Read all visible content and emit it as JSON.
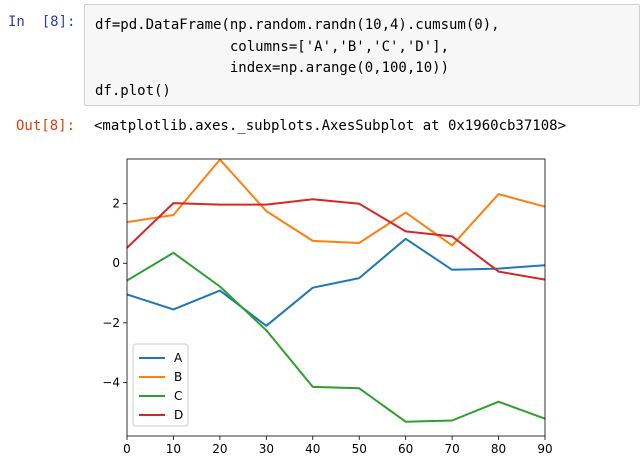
{
  "input_cell": {
    "prompt": "In  [8]:",
    "code_lines": [
      "df=pd.DataFrame(np.random.randn(10,4).cumsum(0),",
      "                columns=['A','B','C','D'],",
      "                index=np.arange(0,100,10))",
      "df.plot()"
    ]
  },
  "output_cell": {
    "prompt": "Out[8]:",
    "text": "<matplotlib.axes._subplots.AxesSubplot at 0x1960cb37108>"
  },
  "chart_data": {
    "type": "line",
    "x": [
      0,
      10,
      20,
      30,
      40,
      50,
      60,
      70,
      80,
      90
    ],
    "xticks": [
      "0",
      "10",
      "20",
      "30",
      "40",
      "50",
      "60",
      "70",
      "80",
      "90"
    ],
    "yticks": [
      2,
      0,
      -2,
      -4
    ],
    "ytick_labels": [
      "2",
      "0",
      "−2",
      "−4"
    ],
    "xlim": [
      0,
      90
    ],
    "ylim": [
      -5.8,
      3.5
    ],
    "grid": false,
    "legend_position": "lower-left",
    "series": [
      {
        "name": "A",
        "color": "#1f77b4",
        "values": [
          -1.05,
          -1.55,
          -0.92,
          -2.1,
          -0.82,
          -0.5,
          0.82,
          -0.22,
          -0.18,
          -0.07
        ]
      },
      {
        "name": "B",
        "color": "#ff7f0e",
        "values": [
          1.38,
          1.62,
          3.48,
          1.75,
          0.75,
          0.68,
          1.7,
          0.6,
          2.32,
          1.9
        ]
      },
      {
        "name": "C",
        "color": "#2ca02c",
        "values": [
          -0.58,
          0.35,
          -0.78,
          -2.25,
          -4.15,
          -4.2,
          -5.32,
          -5.28,
          -4.65,
          -5.22
        ]
      },
      {
        "name": "D",
        "color": "#d62728",
        "values": [
          0.52,
          2.02,
          1.97,
          1.97,
          2.15,
          2.0,
          1.07,
          0.9,
          -0.28,
          -0.55
        ]
      }
    ]
  }
}
